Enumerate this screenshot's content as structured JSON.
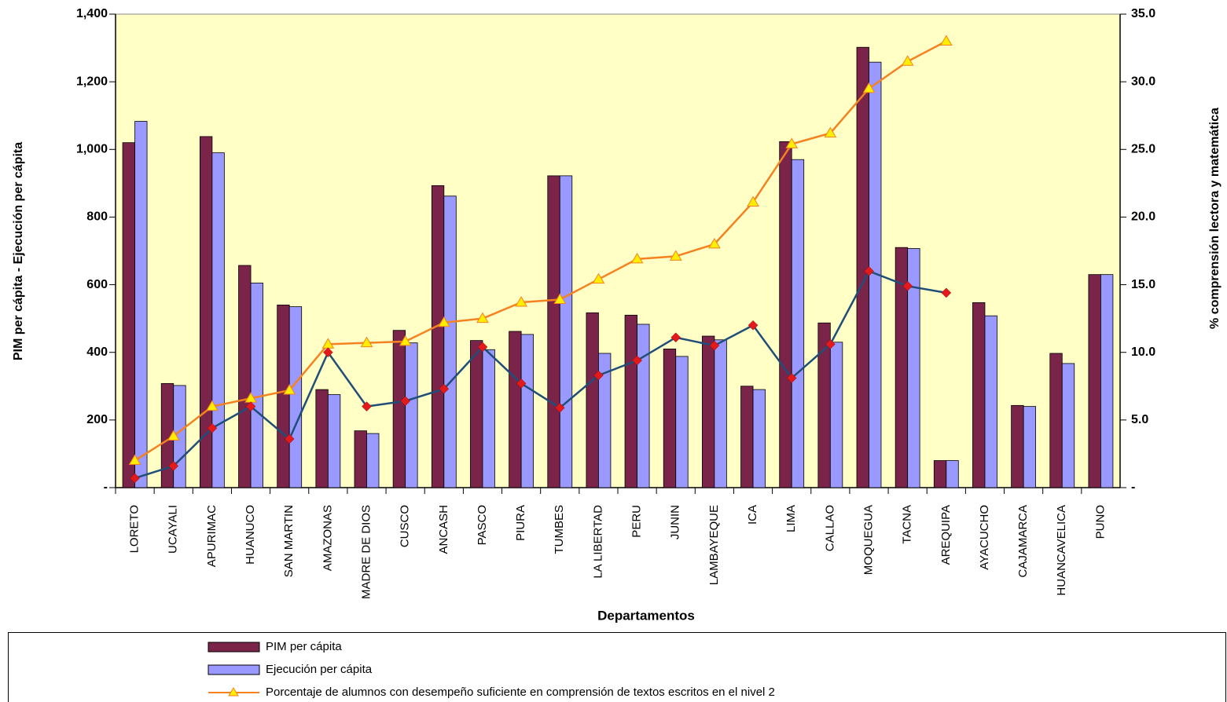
{
  "chart_data": {
    "type": "bar",
    "x_label": "Departamentos",
    "y_label": "PIM per cápita - Ejecución per cápita",
    "y2_label": "% comprensión lectora y matemática",
    "categories": [
      "LORETO",
      "UCAYALI",
      "APURIMAC",
      "HUANUCO",
      "SAN MARTIN",
      "AMAZONAS",
      "MADRE DE DIOS",
      "CUSCO",
      "ANCASH",
      "PASCO",
      "PIURA",
      "TUMBES",
      "LA LIBERTAD",
      "PERU",
      "JUNIN",
      "LAMBAYEQUE",
      "ICA",
      "LIMA",
      "CALLAO",
      "MOQUEGUA",
      "TACNA",
      "AREQUIPA",
      "AYACUCHO",
      "CAJAMARCA",
      "HUANCAVELICA",
      "PUNO"
    ],
    "series": [
      {
        "name": "PIM per cápita",
        "type": "bar",
        "color": "#7b2449",
        "values": [
          1020,
          308,
          1038,
          657,
          540,
          290,
          168,
          465,
          893,
          435,
          462,
          922,
          517,
          510,
          410,
          448,
          300,
          1023,
          487,
          1302,
          710,
          80,
          547,
          243,
          397,
          630
        ]
      },
      {
        "name": "Ejecución per cápita",
        "type": "bar",
        "color": "#9999ff",
        "values": [
          1083,
          302,
          990,
          605,
          535,
          275,
          160,
          428,
          862,
          408,
          453,
          922,
          397,
          483,
          388,
          437,
          290,
          970,
          430,
          1258,
          707,
          80,
          508,
          240,
          367,
          630
        ]
      },
      {
        "name": "Porcentaje de alumnos con desempeño suficiente en comprensión de textos escritos  en el nivel 2",
        "type": "line",
        "axis": "y2",
        "color": "#f58220",
        "marker": "triangle",
        "marker_color": "#ffee00",
        "values": [
          2.0,
          3.8,
          6.0,
          6.6,
          7.2,
          10.6,
          10.7,
          10.8,
          12.2,
          12.5,
          13.7,
          13.9,
          15.4,
          16.9,
          17.1,
          18.0,
          21.1,
          25.4,
          26.2,
          29.5,
          31.5,
          33.0,
          null,
          null,
          null,
          null
        ]
      },
      {
        "type": "line",
        "axis": "y2",
        "color": "#1f4e79",
        "marker": "diamond",
        "marker_color": "#e31a1c",
        "values": [
          0.7,
          1.6,
          4.4,
          6.0,
          3.6,
          10.0,
          6.0,
          6.4,
          7.3,
          10.4,
          7.7,
          5.9,
          8.3,
          9.4,
          11.1,
          10.5,
          12.0,
          8.1,
          10.6,
          16.0,
          14.9,
          14.4,
          null,
          null,
          null,
          null
        ]
      }
    ],
    "ylim": [
      0,
      1400
    ],
    "yticks": [
      {
        "value": 0,
        "label": "-"
      },
      200,
      400,
      600,
      800,
      {
        "value": 1000,
        "label": "1,000"
      },
      {
        "value": 1200,
        "label": "1,200"
      },
      {
        "value": 1400,
        "label": "1,400"
      }
    ],
    "y2lim": [
      0,
      35
    ],
    "y2ticks": [
      {
        "value": 0,
        "label": "-"
      },
      {
        "value": 5,
        "label": "5.0"
      },
      {
        "value": 10,
        "label": "10.0"
      },
      {
        "value": 15,
        "label": "15.0"
      },
      {
        "value": 20,
        "label": "20.0"
      },
      {
        "value": 25,
        "label": "25.0"
      },
      {
        "value": 30,
        "label": "30.0"
      },
      {
        "value": 35,
        "label": "35.0"
      }
    ],
    "plot_background": "#ffffc6"
  }
}
